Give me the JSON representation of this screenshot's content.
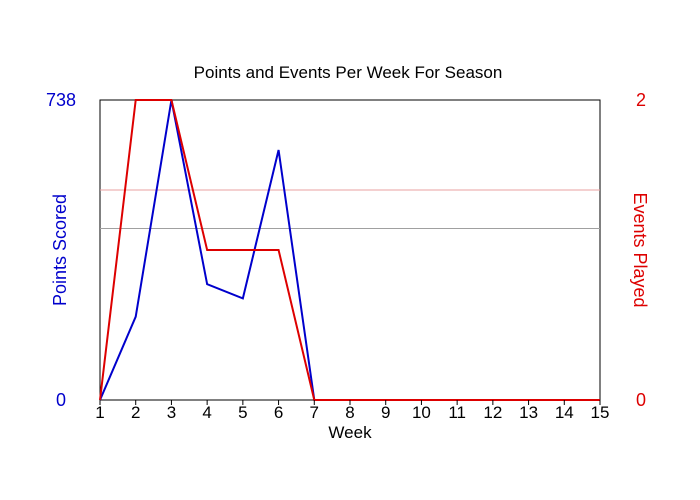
{
  "chart_data": {
    "type": "line",
    "title": "Points and Events Per Week For Season",
    "xlabel": "Week",
    "x": [
      1,
      2,
      3,
      4,
      5,
      6,
      7,
      8,
      9,
      10,
      11,
      12,
      13,
      14,
      15
    ],
    "xticks": [
      "1",
      "2",
      "3",
      "4",
      "5",
      "6",
      "7",
      "8",
      "9",
      "10",
      "11",
      "12",
      "13",
      "14",
      "15"
    ],
    "y_left": {
      "label": "Points Scored",
      "range": [
        0,
        738
      ],
      "ticks": [
        "0",
        "738"
      ],
      "color": "#0000cc"
    },
    "y_right": {
      "label": "Events Played",
      "range": [
        0,
        2
      ],
      "ticks": [
        "0",
        "2"
      ],
      "color": "#dd0000"
    },
    "series": [
      {
        "axis": "left",
        "color": "#0000cc",
        "values": [
          0,
          205,
          738,
          285,
          250,
          615,
          0,
          0,
          0,
          0,
          0,
          0,
          0,
          0,
          0
        ]
      },
      {
        "axis": "right",
        "color": "#dd0000",
        "values": [
          0,
          2,
          2,
          1,
          1,
          1,
          0,
          0,
          0,
          0,
          0,
          0,
          0,
          0,
          0
        ]
      }
    ],
    "reference_lines": [
      {
        "axis": "right",
        "value": 1.4,
        "color": "#e8a0a0"
      },
      {
        "axis": "left",
        "value": 422,
        "color": "#a0a0a0"
      }
    ],
    "grid": false
  }
}
